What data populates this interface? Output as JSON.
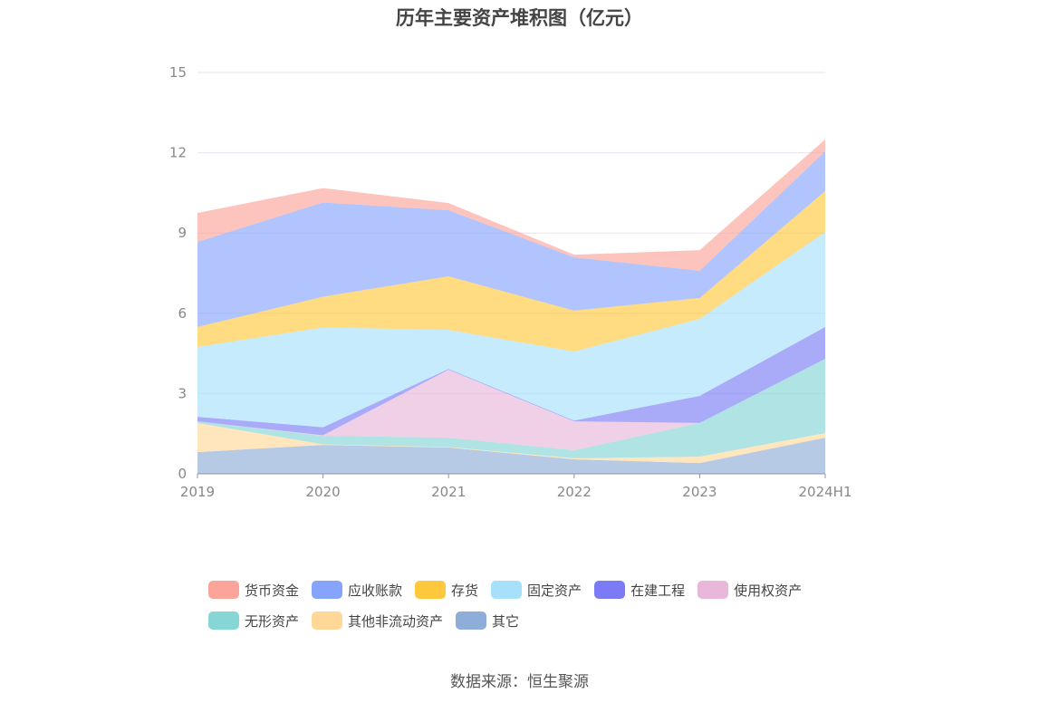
{
  "chart_data": {
    "type": "area",
    "stacked": true,
    "title": "历年主要资产堆积图（亿元）",
    "categories": [
      "2019",
      "2020",
      "2021",
      "2022",
      "2023",
      "2024H1"
    ],
    "ylim": [
      0,
      15
    ],
    "yticks": [
      "0",
      "3",
      "6",
      "9",
      "12",
      "15"
    ],
    "grid": true,
    "legend_position": "bottom",
    "series": [
      {
        "name": "其它",
        "color": "#8fadd9",
        "values": [
          0.81,
          1.08,
          0.98,
          0.54,
          0.4,
          1.35
        ]
      },
      {
        "name": "其他非流动资产",
        "color": "#ffd899",
        "values": [
          1.09,
          0.02,
          0.02,
          0.04,
          0.24,
          0.17
        ]
      },
      {
        "name": "无形资产",
        "color": "#86d6d6",
        "values": [
          0.06,
          0.32,
          0.35,
          0.3,
          1.26,
          2.78
        ]
      },
      {
        "name": "使用权资产",
        "color": "#e8b7da",
        "values": [
          0,
          0.02,
          2.54,
          1.08,
          0,
          0
        ]
      },
      {
        "name": "在建工程",
        "color": "#7b7cf5",
        "values": [
          0.17,
          0.3,
          0.03,
          0.03,
          1.01,
          1.19
        ]
      },
      {
        "name": "固定资产",
        "color": "#a6e0fa",
        "values": [
          2.61,
          3.73,
          1.46,
          2.58,
          2.88,
          3.55
        ]
      },
      {
        "name": "存货",
        "color": "#ffc83d",
        "values": [
          0.75,
          1.15,
          2.0,
          1.53,
          0.78,
          1.53
        ]
      },
      {
        "name": "应收账款",
        "color": "#87a4fc",
        "values": [
          3.18,
          3.52,
          2.47,
          1.99,
          1.02,
          1.49
        ]
      },
      {
        "name": "货币资金",
        "color": "#fba59a",
        "values": [
          1.08,
          0.54,
          0.27,
          0.1,
          0.77,
          0.44
        ]
      }
    ],
    "legend_order": [
      "货币资金",
      "应收账款",
      "存货",
      "固定资产",
      "在建工程",
      "使用权资产",
      "无形资产",
      "其他非流动资产",
      "其它"
    ]
  },
  "source": "数据来源：恒生聚源"
}
